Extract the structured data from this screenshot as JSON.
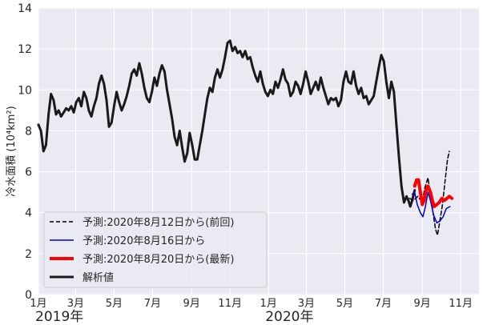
{
  "chart_data": {
    "type": "line",
    "ylabel": "冷水面積 (10⁴km²)",
    "ylim": [
      0,
      14
    ],
    "yticks": [
      0,
      2,
      4,
      6,
      8,
      10,
      12,
      14
    ],
    "xlim": [
      "2019-01-01",
      "2020-11-30"
    ],
    "grid": true,
    "legend_position": "lower-left",
    "month_ticks": [
      {
        "date": "2019-01-01",
        "label": "1月"
      },
      {
        "date": "2019-03-01",
        "label": "3月"
      },
      {
        "date": "2019-05-01",
        "label": "5月"
      },
      {
        "date": "2019-07-01",
        "label": "7月"
      },
      {
        "date": "2019-09-01",
        "label": "9月"
      },
      {
        "date": "2019-11-01",
        "label": "11月"
      },
      {
        "date": "2020-01-01",
        "label": "1月"
      },
      {
        "date": "2020-03-01",
        "label": "3月"
      },
      {
        "date": "2020-05-01",
        "label": "5月"
      },
      {
        "date": "2020-07-01",
        "label": "7月"
      },
      {
        "date": "2020-09-01",
        "label": "9月"
      },
      {
        "date": "2020-11-01",
        "label": "11月"
      }
    ],
    "year_labels": [
      {
        "date": "2019-01-01",
        "label": "2019年"
      },
      {
        "date": "2020-01-01",
        "label": "2020年"
      }
    ],
    "series": [
      {
        "name": "予測:2020年8月12日から(前回)",
        "color": "#000000",
        "style": "dashed",
        "width": 1.5,
        "points": [
          [
            "2020-08-12",
            4.7
          ],
          [
            "2020-08-18",
            4.6
          ],
          [
            "2020-08-25",
            4.8
          ],
          [
            "2020-09-01",
            4.5
          ],
          [
            "2020-09-05",
            5.2
          ],
          [
            "2020-09-10",
            5.7
          ],
          [
            "2020-09-14",
            4.9
          ],
          [
            "2020-09-18",
            4.0
          ],
          [
            "2020-09-22",
            3.2
          ],
          [
            "2020-09-25",
            2.9
          ],
          [
            "2020-09-29",
            3.6
          ],
          [
            "2020-10-03",
            4.4
          ],
          [
            "2020-10-07",
            5.5
          ],
          [
            "2020-10-11",
            6.6
          ],
          [
            "2020-10-14",
            7.0
          ]
        ]
      },
      {
        "name": "予測:2020年8月16日から",
        "color": "#0000cc",
        "style": "solid",
        "width": 1.5,
        "points": [
          [
            "2020-08-16",
            4.9
          ],
          [
            "2020-08-20",
            5.0
          ],
          [
            "2020-08-24",
            4.4
          ],
          [
            "2020-08-29",
            4.0
          ],
          [
            "2020-09-02",
            3.8
          ],
          [
            "2020-09-06",
            4.3
          ],
          [
            "2020-09-10",
            5.0
          ],
          [
            "2020-09-14",
            4.6
          ],
          [
            "2020-09-19",
            3.9
          ],
          [
            "2020-09-24",
            3.5
          ],
          [
            "2020-09-29",
            3.6
          ],
          [
            "2020-10-04",
            3.8
          ],
          [
            "2020-10-09",
            4.2
          ],
          [
            "2020-10-15",
            4.3
          ]
        ]
      },
      {
        "name": "予測:2020年8月20日から(最新)",
        "color": "#ff0000",
        "style": "solid",
        "width": 4,
        "points": [
          [
            "2020-08-20",
            5.3
          ],
          [
            "2020-08-23",
            5.6
          ],
          [
            "2020-08-26",
            5.6
          ],
          [
            "2020-08-29",
            5.0
          ],
          [
            "2020-09-01",
            4.4
          ],
          [
            "2020-09-04",
            4.6
          ],
          [
            "2020-09-07",
            5.1
          ],
          [
            "2020-09-10",
            5.3
          ],
          [
            "2020-09-14",
            5.0
          ],
          [
            "2020-09-17",
            4.6
          ],
          [
            "2020-09-20",
            4.3
          ],
          [
            "2020-09-24",
            4.4
          ],
          [
            "2020-09-28",
            4.5
          ],
          [
            "2020-10-02",
            4.7
          ],
          [
            "2020-10-06",
            4.6
          ],
          [
            "2020-10-10",
            4.7
          ],
          [
            "2020-10-14",
            4.8
          ],
          [
            "2020-10-18",
            4.7
          ]
        ]
      },
      {
        "name": "解析値",
        "color": "#1a1a1a",
        "style": "solid",
        "width": 3,
        "points": [
          [
            "2019-01-01",
            8.3
          ],
          [
            "2019-01-05",
            8.0
          ],
          [
            "2019-01-09",
            7.0
          ],
          [
            "2019-01-13",
            7.3
          ],
          [
            "2019-01-17",
            8.8
          ],
          [
            "2019-01-21",
            9.8
          ],
          [
            "2019-01-25",
            9.5
          ],
          [
            "2019-01-29",
            8.8
          ],
          [
            "2019-02-02",
            9.0
          ],
          [
            "2019-02-06",
            8.7
          ],
          [
            "2019-02-10",
            8.9
          ],
          [
            "2019-02-14",
            9.1
          ],
          [
            "2019-02-18",
            9.0
          ],
          [
            "2019-02-22",
            9.2
          ],
          [
            "2019-02-26",
            8.9
          ],
          [
            "2019-03-02",
            9.4
          ],
          [
            "2019-03-06",
            9.6
          ],
          [
            "2019-03-10",
            9.2
          ],
          [
            "2019-03-14",
            9.9
          ],
          [
            "2019-03-18",
            9.6
          ],
          [
            "2019-03-22",
            9.0
          ],
          [
            "2019-03-26",
            8.7
          ],
          [
            "2019-03-30",
            9.2
          ],
          [
            "2019-04-03",
            9.6
          ],
          [
            "2019-04-07",
            10.3
          ],
          [
            "2019-04-11",
            10.7
          ],
          [
            "2019-04-15",
            10.3
          ],
          [
            "2019-04-19",
            9.5
          ],
          [
            "2019-04-23",
            8.2
          ],
          [
            "2019-04-27",
            8.4
          ],
          [
            "2019-05-01",
            9.2
          ],
          [
            "2019-05-05",
            9.9
          ],
          [
            "2019-05-09",
            9.4
          ],
          [
            "2019-05-13",
            9.0
          ],
          [
            "2019-05-17",
            9.3
          ],
          [
            "2019-05-21",
            9.7
          ],
          [
            "2019-05-25",
            10.2
          ],
          [
            "2019-05-29",
            10.8
          ],
          [
            "2019-06-02",
            11.0
          ],
          [
            "2019-06-06",
            10.7
          ],
          [
            "2019-06-10",
            11.3
          ],
          [
            "2019-06-14",
            10.8
          ],
          [
            "2019-06-18",
            10.1
          ],
          [
            "2019-06-22",
            9.6
          ],
          [
            "2019-06-26",
            9.4
          ],
          [
            "2019-06-30",
            9.9
          ],
          [
            "2019-07-04",
            10.6
          ],
          [
            "2019-07-08",
            10.2
          ],
          [
            "2019-07-12",
            10.8
          ],
          [
            "2019-07-16",
            11.2
          ],
          [
            "2019-07-20",
            10.9
          ],
          [
            "2019-07-24",
            10.0
          ],
          [
            "2019-07-28",
            9.3
          ],
          [
            "2019-08-01",
            8.6
          ],
          [
            "2019-08-05",
            7.7
          ],
          [
            "2019-08-09",
            7.3
          ],
          [
            "2019-08-13",
            8.0
          ],
          [
            "2019-08-17",
            7.2
          ],
          [
            "2019-08-21",
            6.5
          ],
          [
            "2019-08-25",
            6.9
          ],
          [
            "2019-08-29",
            7.9
          ],
          [
            "2019-09-02",
            7.3
          ],
          [
            "2019-09-06",
            6.6
          ],
          [
            "2019-09-10",
            6.6
          ],
          [
            "2019-09-14",
            7.3
          ],
          [
            "2019-09-18",
            8.0
          ],
          [
            "2019-09-22",
            8.8
          ],
          [
            "2019-09-26",
            9.6
          ],
          [
            "2019-09-30",
            10.1
          ],
          [
            "2019-10-04",
            9.9
          ],
          [
            "2019-10-08",
            10.6
          ],
          [
            "2019-10-12",
            11.0
          ],
          [
            "2019-10-16",
            10.6
          ],
          [
            "2019-10-20",
            11.0
          ],
          [
            "2019-10-24",
            11.6
          ],
          [
            "2019-10-28",
            12.3
          ],
          [
            "2019-11-01",
            12.4
          ],
          [
            "2019-11-05",
            11.9
          ],
          [
            "2019-11-09",
            12.1
          ],
          [
            "2019-11-13",
            11.8
          ],
          [
            "2019-11-17",
            11.9
          ],
          [
            "2019-11-21",
            11.6
          ],
          [
            "2019-11-25",
            11.9
          ],
          [
            "2019-11-29",
            11.5
          ],
          [
            "2019-12-03",
            11.6
          ],
          [
            "2019-12-07",
            11.1
          ],
          [
            "2019-12-11",
            10.7
          ],
          [
            "2019-12-15",
            10.4
          ],
          [
            "2019-12-19",
            10.9
          ],
          [
            "2019-12-23",
            10.3
          ],
          [
            "2019-12-27",
            9.9
          ],
          [
            "2019-12-31",
            9.7
          ],
          [
            "2020-01-04",
            10.0
          ],
          [
            "2020-01-08",
            9.8
          ],
          [
            "2020-01-12",
            10.4
          ],
          [
            "2020-01-16",
            10.1
          ],
          [
            "2020-01-20",
            10.5
          ],
          [
            "2020-01-24",
            11.0
          ],
          [
            "2020-01-28",
            10.5
          ],
          [
            "2020-02-01",
            10.3
          ],
          [
            "2020-02-05",
            9.7
          ],
          [
            "2020-02-09",
            9.9
          ],
          [
            "2020-02-13",
            10.4
          ],
          [
            "2020-02-17",
            10.2
          ],
          [
            "2020-02-21",
            9.8
          ],
          [
            "2020-02-25",
            10.3
          ],
          [
            "2020-02-29",
            10.9
          ],
          [
            "2020-03-04",
            10.4
          ],
          [
            "2020-03-08",
            9.8
          ],
          [
            "2020-03-12",
            10.1
          ],
          [
            "2020-03-16",
            10.4
          ],
          [
            "2020-03-20",
            10.0
          ],
          [
            "2020-03-24",
            10.6
          ],
          [
            "2020-03-28",
            10.1
          ],
          [
            "2020-04-01",
            9.7
          ],
          [
            "2020-04-05",
            9.3
          ],
          [
            "2020-04-09",
            9.6
          ],
          [
            "2020-04-13",
            9.5
          ],
          [
            "2020-04-17",
            9.6
          ],
          [
            "2020-04-21",
            9.2
          ],
          [
            "2020-04-25",
            9.5
          ],
          [
            "2020-04-29",
            10.4
          ],
          [
            "2020-05-03",
            10.9
          ],
          [
            "2020-05-07",
            10.4
          ],
          [
            "2020-05-11",
            10.3
          ],
          [
            "2020-05-15",
            10.9
          ],
          [
            "2020-05-19",
            10.2
          ],
          [
            "2020-05-23",
            9.8
          ],
          [
            "2020-05-27",
            10.1
          ],
          [
            "2020-05-31",
            9.6
          ],
          [
            "2020-06-04",
            9.7
          ],
          [
            "2020-06-08",
            9.3
          ],
          [
            "2020-06-12",
            9.5
          ],
          [
            "2020-06-16",
            9.7
          ],
          [
            "2020-06-20",
            10.4
          ],
          [
            "2020-06-24",
            11.1
          ],
          [
            "2020-06-28",
            11.7
          ],
          [
            "2020-07-02",
            11.4
          ],
          [
            "2020-07-06",
            10.4
          ],
          [
            "2020-07-10",
            9.6
          ],
          [
            "2020-07-14",
            10.4
          ],
          [
            "2020-07-18",
            9.9
          ],
          [
            "2020-07-22",
            8.3
          ],
          [
            "2020-07-26",
            6.7
          ],
          [
            "2020-07-30",
            5.3
          ],
          [
            "2020-08-03",
            4.5
          ],
          [
            "2020-08-07",
            4.8
          ],
          [
            "2020-08-10",
            4.6
          ],
          [
            "2020-08-13",
            4.3
          ],
          [
            "2020-08-16",
            4.6
          ],
          [
            "2020-08-20",
            5.1
          ]
        ]
      }
    ]
  }
}
